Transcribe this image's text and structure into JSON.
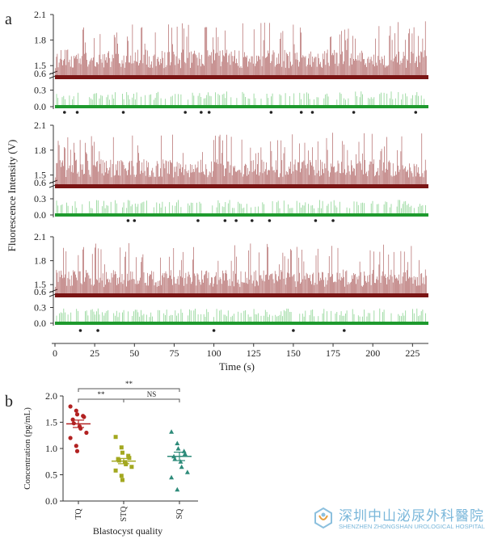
{
  "chart_data": [
    {
      "panel_label": "a",
      "type": "line",
      "title": "",
      "xlabel": "Time (s)",
      "ylabel": "Fluorescence Intensity (V)",
      "xlim": [
        0,
        235
      ],
      "x_ticks": [
        0,
        25,
        50,
        75,
        100,
        125,
        150,
        175,
        200,
        225
      ],
      "upper_y_ticks": [
        1.5,
        1.8,
        2.1
      ],
      "lower_y_ticks": [
        0.0,
        0.3,
        0.6
      ],
      "series": [
        {
          "name": "Red channel",
          "color": "#8b1a1a",
          "baseline": 1.35,
          "typical_peak": 1.7,
          "max_peak": 2.05
        },
        {
          "name": "Green channel",
          "color": "#1e9a2e",
          "baseline": 0.0,
          "typical_peak": 0.25
        }
      ],
      "traces": [
        {
          "marker_times": [
            6,
            14,
            43,
            82,
            92,
            97,
            136,
            155,
            162,
            188,
            227
          ]
        },
        {
          "marker_times": [
            46,
            50,
            90,
            107,
            114,
            124,
            135,
            164,
            175
          ]
        },
        {
          "marker_times": [
            16,
            27,
            100,
            150,
            182
          ]
        }
      ]
    },
    {
      "panel_label": "b",
      "type": "scatter",
      "title": "",
      "xlabel": "Blastocyst quality",
      "ylabel": "Concentration (pg/mL)",
      "ylim": [
        0.0,
        2.0
      ],
      "y_ticks": [
        0.0,
        0.5,
        1.0,
        1.5,
        2.0
      ],
      "categories": [
        "TQ",
        "STQ",
        "SQ"
      ],
      "series": [
        {
          "name": "TQ",
          "color": "#b22222",
          "mean": 1.47,
          "error": 0.07,
          "values": [
            1.8,
            1.72,
            1.65,
            1.62,
            1.6,
            1.55,
            1.48,
            1.42,
            1.38,
            1.3,
            1.2,
            1.05,
            0.95
          ]
        },
        {
          "name": "STQ",
          "color": "#a3a820",
          "mean": 0.76,
          "error": 0.05,
          "values": [
            1.22,
            1.02,
            0.92,
            0.86,
            0.82,
            0.8,
            0.77,
            0.74,
            0.7,
            0.65,
            0.58,
            0.48,
            0.4
          ]
        },
        {
          "name": "SQ",
          "color": "#2e8b7a",
          "mean": 0.85,
          "error": 0.08,
          "values": [
            1.32,
            1.1,
            1.0,
            0.95,
            0.9,
            0.85,
            0.8,
            0.75,
            0.65,
            0.55,
            0.45,
            0.22
          ]
        }
      ],
      "significance": [
        {
          "from": "TQ",
          "to": "SQ",
          "label": "**"
        },
        {
          "from": "TQ",
          "to": "STQ",
          "label": "**"
        },
        {
          "from": "STQ",
          "to": "SQ",
          "label": "NS"
        }
      ]
    }
  ],
  "watermark": {
    "name_cn": "深圳中山泌尿外科醫院",
    "name_en": "SHENZHEN ZHONGSHAN UROLOGICAL HOSPITAL",
    "color": "#7ab7da"
  }
}
